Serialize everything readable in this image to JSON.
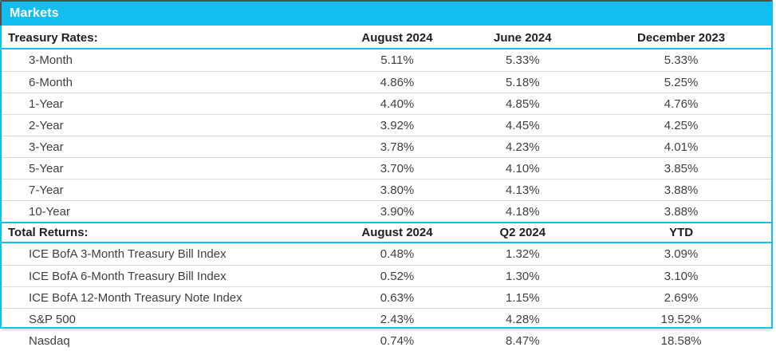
{
  "title": "Markets",
  "colors": {
    "accent": "#12bdef",
    "row_divider": "#d9d9d9",
    "dark_edge": "#4f4f4f",
    "header_text": "#1f1f1f",
    "body_text": "#3f3f3f",
    "title_text": "#ffffff"
  },
  "chart_data": {
    "type": "table",
    "title": "Markets",
    "sections": [
      {
        "header_label": "Treasury Rates:",
        "columns": [
          "August 2024",
          "June 2024",
          "December 2023"
        ],
        "rows": [
          {
            "label": "3-Month",
            "values": [
              "5.11%",
              "5.33%",
              "5.33%"
            ]
          },
          {
            "label": "6-Month",
            "values": [
              "4.86%",
              "5.18%",
              "5.25%"
            ]
          },
          {
            "label": "1-Year",
            "values": [
              "4.40%",
              "4.85%",
              "4.76%"
            ]
          },
          {
            "label": "2-Year",
            "values": [
              "3.92%",
              "4.45%",
              "4.25%"
            ]
          },
          {
            "label": "3-Year",
            "values": [
              "3.78%",
              "4.23%",
              "4.01%"
            ]
          },
          {
            "label": "5-Year",
            "values": [
              "3.70%",
              "4.10%",
              "3.85%"
            ]
          },
          {
            "label": "7-Year",
            "values": [
              "3.80%",
              "4.13%",
              "3.88%"
            ]
          },
          {
            "label": "10-Year",
            "values": [
              "3.90%",
              "4.18%",
              "3.88%"
            ]
          }
        ]
      },
      {
        "header_label": "Total Returns:",
        "columns": [
          "August 2024",
          "Q2 2024",
          "YTD"
        ],
        "rows": [
          {
            "label": "ICE BofA 3-Month Treasury Bill Index",
            "values": [
              "0.48%",
              "1.32%",
              "3.09%"
            ]
          },
          {
            "label": "ICE BofA 6-Month Treasury Bill Index",
            "values": [
              "0.52%",
              "1.30%",
              "3.10%"
            ]
          },
          {
            "label": "ICE BofA 12-Month Treasury Note Index",
            "values": [
              "0.63%",
              "1.15%",
              "2.69%"
            ]
          },
          {
            "label": "S&P 500",
            "values": [
              "2.43%",
              "4.28%",
              "19.52%"
            ]
          },
          {
            "label": "Nasdaq",
            "values": [
              "0.74%",
              "8.47%",
              "18.58%"
            ]
          }
        ]
      }
    ]
  }
}
